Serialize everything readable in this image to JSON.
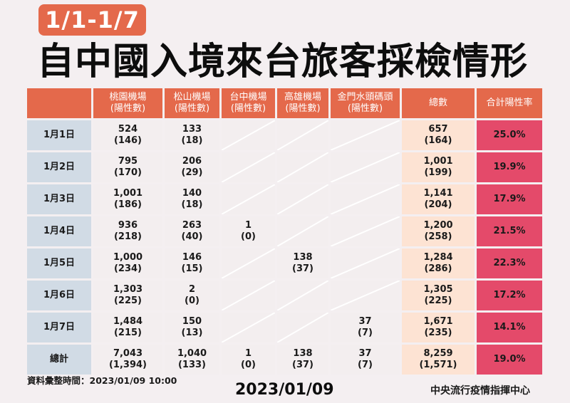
{
  "header": {
    "date_range_badge": "1/1-1/7",
    "title": "自中國入境來台旅客採檢情形"
  },
  "table": {
    "columns": [
      {
        "line1": "",
        "line2": ""
      },
      {
        "line1": "桃園機場",
        "line2": "(陽性數)"
      },
      {
        "line1": "松山機場",
        "line2": "(陽性數)"
      },
      {
        "line1": "台中機場",
        "line2": "(陽性數)"
      },
      {
        "line1": "高雄機場",
        "line2": "(陽性數)"
      },
      {
        "line1": "金門水頭碼頭",
        "line2": "(陽性數)"
      },
      {
        "line1": "總數",
        "line2": ""
      },
      {
        "line1": "合計陽性率",
        "line2": ""
      }
    ],
    "rows": [
      {
        "date": "1月1日",
        "taoyuan": {
          "total": "524",
          "positive": "(146)"
        },
        "songshan": {
          "total": "133",
          "positive": "(18)"
        },
        "taichung": null,
        "kaohsiung": null,
        "kinmen": null,
        "sum": {
          "total": "657",
          "positive": "(164)"
        },
        "rate": "25.0%"
      },
      {
        "date": "1月2日",
        "taoyuan": {
          "total": "795",
          "positive": "(170)"
        },
        "songshan": {
          "total": "206",
          "positive": "(29)"
        },
        "taichung": null,
        "kaohsiung": null,
        "kinmen": null,
        "sum": {
          "total": "1,001",
          "positive": "(199)"
        },
        "rate": "19.9%"
      },
      {
        "date": "1月3日",
        "taoyuan": {
          "total": "1,001",
          "positive": "(186)"
        },
        "songshan": {
          "total": "140",
          "positive": "(18)"
        },
        "taichung": null,
        "kaohsiung": null,
        "kinmen": null,
        "sum": {
          "total": "1,141",
          "positive": "(204)"
        },
        "rate": "17.9%"
      },
      {
        "date": "1月4日",
        "taoyuan": {
          "total": "936",
          "positive": "(218)"
        },
        "songshan": {
          "total": "263",
          "positive": "(40)"
        },
        "taichung": {
          "total": "1",
          "positive": "(0)"
        },
        "kaohsiung": null,
        "kinmen": null,
        "sum": {
          "total": "1,200",
          "positive": "(258)"
        },
        "rate": "21.5%"
      },
      {
        "date": "1月5日",
        "taoyuan": {
          "total": "1,000",
          "positive": "(234)"
        },
        "songshan": {
          "total": "146",
          "positive": "(15)"
        },
        "taichung": null,
        "kaohsiung": {
          "total": "138",
          "positive": "(37)"
        },
        "kinmen": null,
        "sum": {
          "total": "1,284",
          "positive": "(286)"
        },
        "rate": "22.3%"
      },
      {
        "date": "1月6日",
        "taoyuan": {
          "total": "1,303",
          "positive": "(225)"
        },
        "songshan": {
          "total": "2",
          "positive": "(0)"
        },
        "taichung": null,
        "kaohsiung": null,
        "kinmen": null,
        "sum": {
          "total": "1,305",
          "positive": "(225)"
        },
        "rate": "17.2%"
      },
      {
        "date": "1月7日",
        "taoyuan": {
          "total": "1,484",
          "positive": "(215)"
        },
        "songshan": {
          "total": "150",
          "positive": "(13)"
        },
        "taichung": null,
        "kaohsiung": null,
        "kinmen": {
          "total": "37",
          "positive": "(7)"
        },
        "sum": {
          "total": "1,671",
          "positive": "(235)"
        },
        "rate": "14.1%"
      },
      {
        "date": "總計",
        "taoyuan": {
          "total": "7,043",
          "positive": "(1,394)"
        },
        "songshan": {
          "total": "1,040",
          "positive": "(133)"
        },
        "taichung": {
          "total": "1",
          "positive": "(0)"
        },
        "kaohsiung": {
          "total": "138",
          "positive": "(37)"
        },
        "kinmen": {
          "total": "37",
          "positive": "(7)"
        },
        "sum": {
          "total": "8,259",
          "positive": "(1,571)"
        },
        "rate": "19.0%"
      }
    ]
  },
  "footer": {
    "data_time": "資料彙整時間：2023/01/09 10:00",
    "date": "2023/01/09",
    "organization": "中央流行疫情指揮中心"
  },
  "colors": {
    "header_orange": "#e4694b",
    "date_column_blue_gray": "#d1dbe5",
    "data_cell": "#f3eeef",
    "total_column_peach": "#fde3d3",
    "rate_column_pink": "#e44a6a",
    "background": "#f4eff1"
  }
}
